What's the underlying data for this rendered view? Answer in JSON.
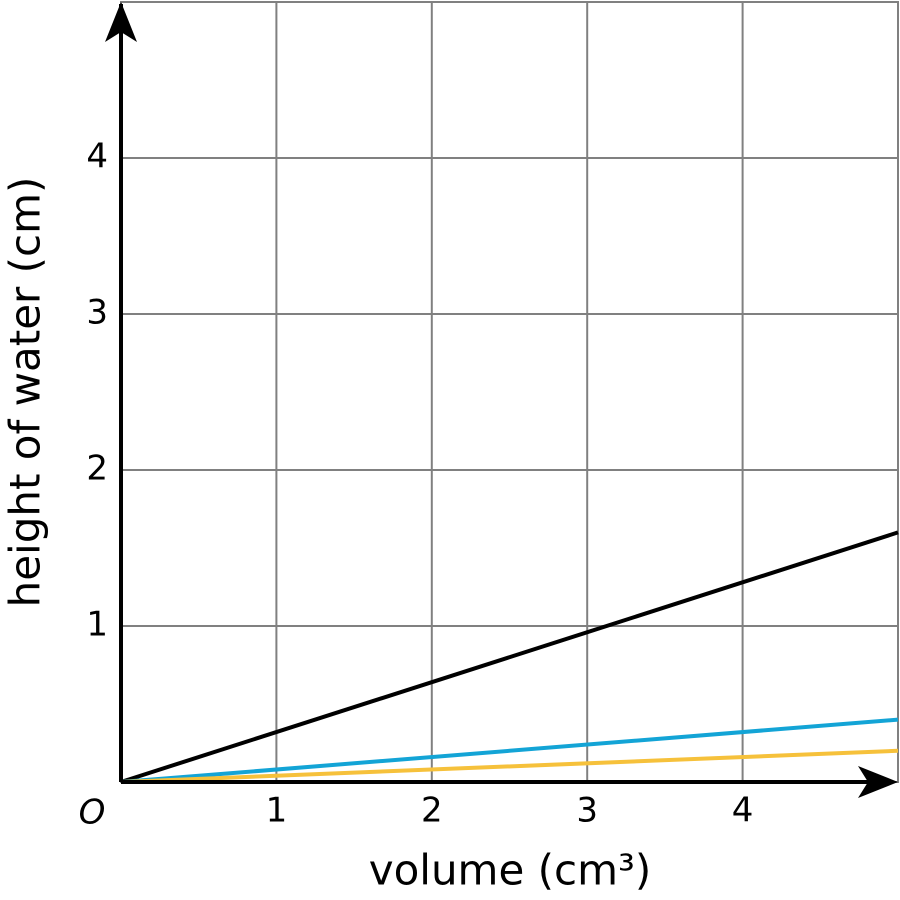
{
  "chart_data": {
    "type": "line",
    "x_label": "volume (cm³)",
    "y_label": "height of water (cm)",
    "origin_label": "O",
    "xlim": [
      0,
      5
    ],
    "ylim": [
      0,
      5
    ],
    "xticks": [
      1,
      2,
      3,
      4
    ],
    "yticks": [
      1,
      2,
      3,
      4
    ],
    "grid": true,
    "series": [
      {
        "color": "#000000",
        "x": [
          0,
          5
        ],
        "values": [
          0,
          1.6
        ]
      },
      {
        "color": "#13a4d6",
        "x": [
          0,
          5
        ],
        "values": [
          0,
          0.4
        ]
      },
      {
        "color": "#f6c13b",
        "x": [
          0,
          5
        ],
        "values": [
          0,
          0.2
        ]
      }
    ]
  }
}
